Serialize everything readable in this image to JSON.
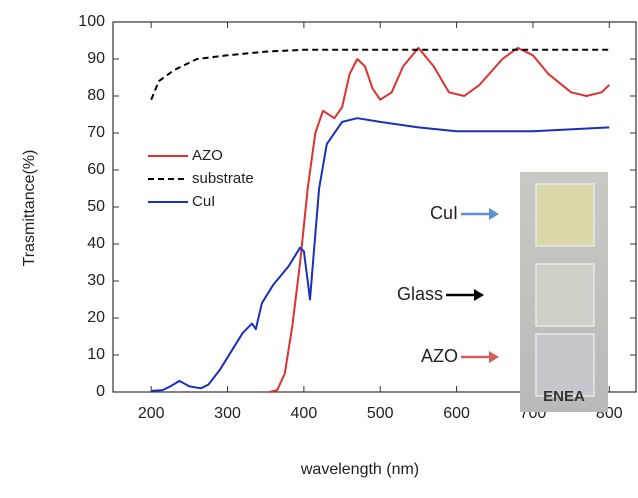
{
  "chart_data": {
    "type": "line",
    "xlabel": "wavelength (nm)",
    "ylabel": "Trasmittance(%)",
    "xlim": [
      150,
      835
    ],
    "xticks": [
      200,
      300,
      400,
      500,
      600,
      700,
      800
    ],
    "ylim": [
      0,
      100
    ],
    "yticks": [
      0,
      10,
      20,
      30,
      40,
      50,
      60,
      70,
      80,
      90,
      100
    ],
    "legend": "center left",
    "series": [
      {
        "name": "AZO",
        "color": "#e03030",
        "dash": "solid",
        "x": [
          355,
          365,
          375,
          385,
          395,
          405,
          415,
          425,
          440,
          450,
          460,
          470,
          480,
          490,
          500,
          515,
          530,
          550,
          570,
          590,
          610,
          630,
          660,
          680,
          700,
          720,
          750,
          770,
          790,
          800
        ],
        "values": [
          0,
          0.5,
          5,
          18,
          35,
          55,
          70,
          76,
          74,
          77,
          86,
          90,
          88,
          82,
          79,
          81,
          88,
          93,
          88,
          81,
          80,
          83,
          90,
          93,
          91,
          86,
          81,
          80,
          81,
          83
        ]
      },
      {
        "name": "substrate",
        "color": "#000000",
        "dash": "dashed",
        "x": [
          200,
          210,
          230,
          260,
          300,
          350,
          400,
          500,
          800
        ],
        "values": [
          79,
          84,
          87,
          90,
          91,
          92,
          92.5,
          92.5,
          92.5
        ]
      },
      {
        "name": "CuI",
        "color": "#1a2fbf",
        "dash": "solid",
        "x": [
          200,
          215,
          225,
          237,
          250,
          265,
          275,
          290,
          305,
          320,
          332,
          337,
          345,
          360,
          380,
          395,
          400,
          405,
          408,
          412,
          420,
          430,
          450,
          470,
          500,
          550,
          600,
          700,
          800
        ],
        "values": [
          0.3,
          0.5,
          1.5,
          3,
          1.5,
          1,
          2,
          6,
          11,
          16,
          18.5,
          17,
          24,
          29,
          34,
          39,
          38,
          30,
          25,
          35,
          55,
          67,
          73,
          74,
          73,
          71.5,
          70.5,
          70.5,
          71.5
        ]
      }
    ],
    "annotations": [
      "CuI",
      "Glass",
      "AZO",
      "ENEA"
    ]
  }
}
